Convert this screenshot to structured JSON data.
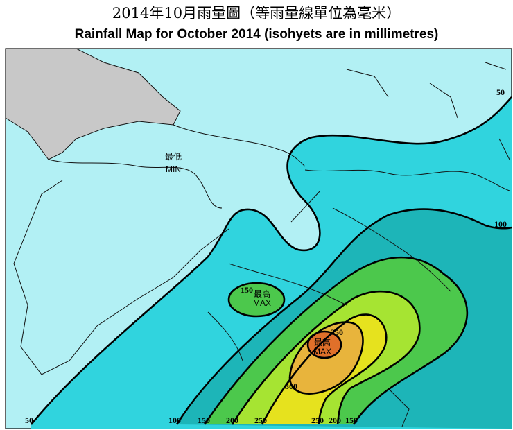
{
  "header": {
    "title_zh": "2014年10月雨量圖（等雨量線單位為毫米）",
    "title_en": "Rainfall Map for October 2014 (isohyets are in millimetres)"
  },
  "map": {
    "min_label": {
      "zh": "最低",
      "en": "MIN"
    },
    "max_labels": [
      {
        "zh": "最高",
        "en": "MAX"
      },
      {
        "zh": "最高",
        "en": "MAX"
      }
    ],
    "isohyet_labels": [
      50,
      100,
      50,
      100,
      150,
      200,
      250,
      250,
      200,
      150,
      300,
      350,
      150
    ]
  }
}
